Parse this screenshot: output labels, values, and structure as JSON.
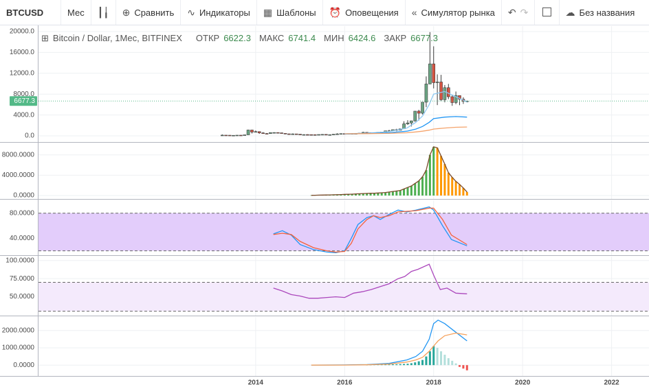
{
  "toolbar": {
    "symbol": "BTCUSD",
    "interval": "Мес",
    "compare": "Сравнить",
    "indicators": "Индикаторы",
    "templates": "Шаблоны",
    "alerts": "Оповещения",
    "replay": "Симулятор рынка",
    "layout": "Без названия"
  },
  "chart_data": [
    {
      "type": "candlestick",
      "title": "Bitcoin / Dollar, 1Мес, BITFINEX",
      "legend_labels": [
        "ОТКР",
        "МАКС",
        "МИН",
        "ЗАКР"
      ],
      "up_color": "#6ba583",
      "down_color": "#d75442",
      "border_color": "#3b3b3b",
      "last_price_color": "#53b987",
      "xlim": [
        2009.12,
        2022.84
      ],
      "xticks": [
        2014,
        2016,
        2018,
        2020,
        2022
      ],
      "ylim": [
        -1180,
        21050
      ],
      "yticks": [
        {
          "value": 0,
          "label": "0.0"
        },
        {
          "value": 4000,
          "label": "4000.0"
        },
        {
          "value": 8000,
          "label": "8000.0"
        },
        {
          "value": 12000,
          "label": "12000.0"
        },
        {
          "value": 16000,
          "label": "16000.0"
        },
        {
          "value": 20000,
          "label": "20000.0"
        }
      ],
      "x": [
        2013.25,
        2013.333,
        2013.417,
        2013.5,
        2013.583,
        2013.667,
        2013.75,
        2013.833,
        2013.917,
        2014,
        2014.083,
        2014.167,
        2014.25,
        2014.333,
        2014.417,
        2014.5,
        2014.583,
        2014.667,
        2014.75,
        2014.833,
        2014.917,
        2015,
        2015.083,
        2015.167,
        2015.25,
        2015.333,
        2015.417,
        2015.5,
        2015.583,
        2015.667,
        2015.75,
        2015.833,
        2015.917,
        2016,
        2016.083,
        2016.167,
        2016.25,
        2016.333,
        2016.417,
        2016.5,
        2016.583,
        2016.667,
        2016.75,
        2016.833,
        2016.917,
        2017,
        2017.083,
        2017.167,
        2017.25,
        2017.333,
        2017.417,
        2017.5,
        2017.583,
        2017.667,
        2017.75,
        2017.833,
        2017.917,
        2018,
        2018.083,
        2018.167,
        2018.25,
        2018.333,
        2018.417,
        2018.5,
        2018.583,
        2018.667,
        2018.75
      ],
      "ohlc": {
        "open": [
          93,
          139,
          129,
          97,
          106,
          135,
          133,
          198,
          1120,
          732,
          820,
          565,
          455,
          445,
          628,
          640,
          585,
          478,
          386,
          338,
          378,
          320,
          217,
          254,
          244,
          236,
          230,
          263,
          284,
          230,
          236,
          314,
          377,
          430,
          368,
          437,
          416,
          448,
          531,
          673,
          624,
          575,
          609,
          700,
          742,
          964,
          970,
          1190,
          1080,
          1350,
          2300,
          2480,
          2880,
          4740,
          4340,
          6460,
          9950,
          13800,
          10200,
          10330,
          6930,
          9240,
          7500,
          6390,
          7730,
          7030,
          6622.3
        ],
        "high": [
          266,
          140,
          130,
          110,
          135,
          146,
          212,
          1175,
          1165,
          1019,
          864,
          710,
          540,
          630,
          680,
          660,
          600,
          490,
          425,
          460,
          385,
          320,
          265,
          300,
          260,
          248,
          267,
          318,
          287,
          245,
          335,
          500,
          470,
          460,
          446,
          438,
          468,
          550,
          780,
          705,
          626,
          630,
          715,
          755,
          970,
          1150,
          1200,
          1350,
          1370,
          2800,
          3000,
          2920,
          4760,
          5000,
          6470,
          11400,
          19891,
          17170,
          11790,
          11700,
          9750,
          9960,
          7770,
          8500,
          7750,
          7400,
          6741.4
        ],
        "low": [
          50,
          110,
          90,
          65,
          101,
          120,
          105,
          195,
          455,
          720,
          400,
          450,
          340,
          420,
          540,
          560,
          440,
          375,
          280,
          320,
          305,
          160,
          212,
          240,
          215,
          225,
          218,
          253,
          195,
          225,
          235,
          300,
          350,
          350,
          365,
          397,
          412,
          442,
          525,
          620,
          480,
          570,
          605,
          682,
          740,
          750,
          915,
          890,
          1070,
          1350,
          2100,
          1800,
          2700,
          2950,
          4110,
          5500,
          9900,
          9100,
          5900,
          6600,
          6430,
          7040,
          5760,
          6070,
          5880,
          6130,
          6424.6
        ],
        "close": [
          139,
          129,
          97,
          106,
          135,
          133,
          198,
          1120,
          732,
          820,
          565,
          455,
          445,
          628,
          640,
          585,
          478,
          386,
          338,
          378,
          320,
          217,
          254,
          244,
          236,
          230,
          263,
          284,
          230,
          236,
          314,
          377,
          430,
          368,
          437,
          416,
          448,
          531,
          673,
          624,
          575,
          609,
          700,
          742,
          964,
          970,
          1190,
          1080,
          1350,
          2300,
          2480,
          2880,
          4740,
          4340,
          6460,
          9950,
          13800,
          10200,
          10330,
          6930,
          9240,
          7500,
          6390,
          7730,
          7030,
          6620,
          6677.3
        ]
      },
      "series": [
        {
          "kind": "line",
          "color": "#8fc9f2",
          "x": [
            2016,
            2016.5,
            2017,
            2017.4,
            2017.6,
            2017.75,
            2017.9,
            2018,
            2018.25,
            2018.5,
            2018.75
          ],
          "values": [
            400,
            500,
            800,
            1500,
            2600,
            3800,
            6000,
            8000,
            8500,
            7500,
            6500
          ]
        },
        {
          "kind": "line",
          "color": "#2196f3",
          "x": [
            2016,
            2016.5,
            2017,
            2017.4,
            2017.6,
            2017.75,
            2017.9,
            2018,
            2018.25,
            2018.5,
            2018.75
          ],
          "values": [
            350,
            450,
            600,
            900,
            1300,
            1800,
            2600,
            3300,
            3600,
            3700,
            3600
          ]
        },
        {
          "kind": "line",
          "color": "#f5a36b",
          "x": [
            2016,
            2016.5,
            2017,
            2017.4,
            2017.6,
            2017.75,
            2017.9,
            2018,
            2018.25,
            2018.5,
            2018.75
          ],
          "values": [
            400,
            420,
            480,
            600,
            750,
            900,
            1100,
            1300,
            1500,
            1650,
            1700
          ]
        }
      ]
    },
    {
      "type": "line",
      "xlim": [
        2009.12,
        2022.84
      ],
      "xticks": [
        2014,
        2016,
        2018,
        2020,
        2022
      ],
      "ylim": [
        -670,
        10270
      ],
      "yticks": [
        {
          "value": 0,
          "label": "0.0000"
        },
        {
          "value": 4000,
          "label": "4000.0000"
        },
        {
          "value": 8000,
          "label": "8000.0000"
        }
      ],
      "series": [
        {
          "kind": "bars",
          "up_color": "#4caf50",
          "fade_color": "#ff9800",
          "neg_color": "#ef5350",
          "line_color": "#7a4a2a",
          "x": [
            2015.25,
            2015.333,
            2015.417,
            2015.5,
            2015.583,
            2015.667,
            2015.75,
            2015.833,
            2015.917,
            2016,
            2016.083,
            2016.167,
            2016.25,
            2016.333,
            2016.417,
            2016.5,
            2016.583,
            2016.667,
            2016.75,
            2016.833,
            2016.917,
            2017,
            2017.083,
            2017.167,
            2017.25,
            2017.333,
            2017.417,
            2017.5,
            2017.583,
            2017.667,
            2017.75,
            2017.833,
            2017.917,
            2018,
            2018.083,
            2018.167,
            2018.25,
            2018.333,
            2018.417,
            2018.5,
            2018.583,
            2018.667,
            2018.75
          ],
          "values": [
            50,
            60,
            80,
            100,
            120,
            130,
            150,
            170,
            200,
            230,
            250,
            280,
            310,
            350,
            400,
            430,
            450,
            470,
            500,
            540,
            600,
            700,
            800,
            900,
            1000,
            1300,
            1600,
            1900,
            2400,
            2900,
            3700,
            5000,
            8000,
            9600,
            9400,
            7800,
            6200,
            4500,
            3600,
            2800,
            2200,
            1500,
            700
          ]
        }
      ]
    },
    {
      "type": "line",
      "xlim": [
        2009.12,
        2022.84
      ],
      "xticks": [
        2014,
        2016,
        2018,
        2020,
        2022
      ],
      "ylim": [
        13,
        100.5
      ],
      "yticks": [
        {
          "value": 40,
          "label": "40.0000"
        },
        {
          "value": 80,
          "label": "80.0000"
        }
      ],
      "band": [
        20,
        80
      ],
      "band_color": "#e3cdfb",
      "series": [
        {
          "kind": "line",
          "color": "#2196f3",
          "x": [
            2014.4,
            2014.6,
            2014.8,
            2015,
            2015.3,
            2015.6,
            2015.8,
            2016,
            2016.15,
            2016.3,
            2016.5,
            2016.65,
            2016.8,
            2017,
            2017.2,
            2017.4,
            2017.6,
            2017.9,
            2018,
            2018.2,
            2018.4,
            2018.75
          ],
          "values": [
            47,
            52,
            45,
            30,
            22,
            18,
            17,
            20,
            40,
            62,
            73,
            76,
            70,
            78,
            85,
            82,
            85,
            90,
            85,
            60,
            38,
            28
          ]
        },
        {
          "kind": "line",
          "color": "#f4623a",
          "x": [
            2014.4,
            2014.6,
            2014.8,
            2015,
            2015.3,
            2015.6,
            2015.8,
            2016,
            2016.15,
            2016.3,
            2016.5,
            2016.65,
            2016.8,
            2017,
            2017.2,
            2017.4,
            2017.6,
            2017.9,
            2018,
            2018.2,
            2018.4,
            2018.75
          ],
          "values": [
            46,
            48,
            46,
            35,
            25,
            20,
            18,
            19,
            32,
            55,
            70,
            76,
            73,
            76,
            82,
            83,
            84,
            88,
            88,
            70,
            45,
            30
          ]
        }
      ]
    },
    {
      "type": "line",
      "xlim": [
        2009.12,
        2022.84
      ],
      "xticks": [
        2014,
        2016,
        2018,
        2020,
        2022
      ],
      "ylim": [
        24,
        105.5
      ],
      "yticks": [
        {
          "value": 50,
          "label": "50.0000"
        },
        {
          "value": 75,
          "label": "75.0000"
        },
        {
          "value": 100,
          "label": "100.0000"
        }
      ],
      "band": [
        30,
        70
      ],
      "band_color": "#f4eafc",
      "series": [
        {
          "kind": "line",
          "color": "#ab47bc",
          "x": [
            2014.4,
            2014.6,
            2014.8,
            2015,
            2015.2,
            2015.4,
            2015.6,
            2015.8,
            2016,
            2016.2,
            2016.4,
            2016.6,
            2016.8,
            2017,
            2017.2,
            2017.35,
            2017.5,
            2017.65,
            2017.9,
            2018,
            2018.15,
            2018.3,
            2018.5,
            2018.75
          ],
          "values": [
            62,
            58,
            53,
            51,
            48,
            48,
            49,
            50,
            49,
            55,
            57,
            60,
            64,
            68,
            75,
            78,
            85,
            88,
            95,
            80,
            60,
            62,
            55,
            54
          ]
        }
      ]
    },
    {
      "type": "line",
      "xlim": [
        2009.12,
        2022.84
      ],
      "xticks": [
        2014,
        2016,
        2018,
        2020,
        2022
      ],
      "ylim": [
        -627,
        2784
      ],
      "yticks": [
        {
          "value": 0,
          "label": "0.0000"
        },
        {
          "value": 1000,
          "label": "1000.0000"
        },
        {
          "value": 2000,
          "label": "2000.0000"
        }
      ],
      "series": [
        {
          "kind": "bars",
          "up_color": "#26a69a",
          "fade_color": "#b2dfdb",
          "neg_color": "#ef5350",
          "x": [
            2016.5,
            2016.583,
            2016.667,
            2016.75,
            2016.833,
            2016.917,
            2017,
            2017.083,
            2017.167,
            2017.25,
            2017.333,
            2017.417,
            2017.5,
            2017.583,
            2017.667,
            2017.75,
            2017.833,
            2017.917,
            2018,
            2018.083,
            2018.167,
            2018.25,
            2018.333,
            2018.417,
            2018.5,
            2018.583,
            2018.667,
            2018.75
          ],
          "values": [
            10,
            15,
            20,
            25,
            30,
            35,
            40,
            45,
            50,
            60,
            70,
            80,
            110,
            160,
            220,
            300,
            500,
            800,
            1100,
            1000,
            800,
            600,
            400,
            250,
            100,
            -100,
            -200,
            -300
          ]
        },
        {
          "kind": "line",
          "color": "#2196f3",
          "x": [
            2015.25,
            2016,
            2016.5,
            2017,
            2017.4,
            2017.6,
            2017.75,
            2017.9,
            2018,
            2018.1,
            2018.25,
            2018.5,
            2018.75
          ],
          "values": [
            0,
            10,
            30,
            100,
            300,
            500,
            800,
            1500,
            2400,
            2600,
            2400,
            1900,
            1400
          ]
        },
        {
          "kind": "line",
          "color": "#f5a05a",
          "x": [
            2015.25,
            2016,
            2016.5,
            2017,
            2017.4,
            2017.6,
            2017.75,
            2017.9,
            2018,
            2018.1,
            2018.25,
            2018.5,
            2018.75
          ],
          "values": [
            0,
            5,
            20,
            60,
            180,
            300,
            450,
            800,
            1100,
            1400,
            1700,
            1850,
            1750
          ]
        }
      ]
    }
  ]
}
